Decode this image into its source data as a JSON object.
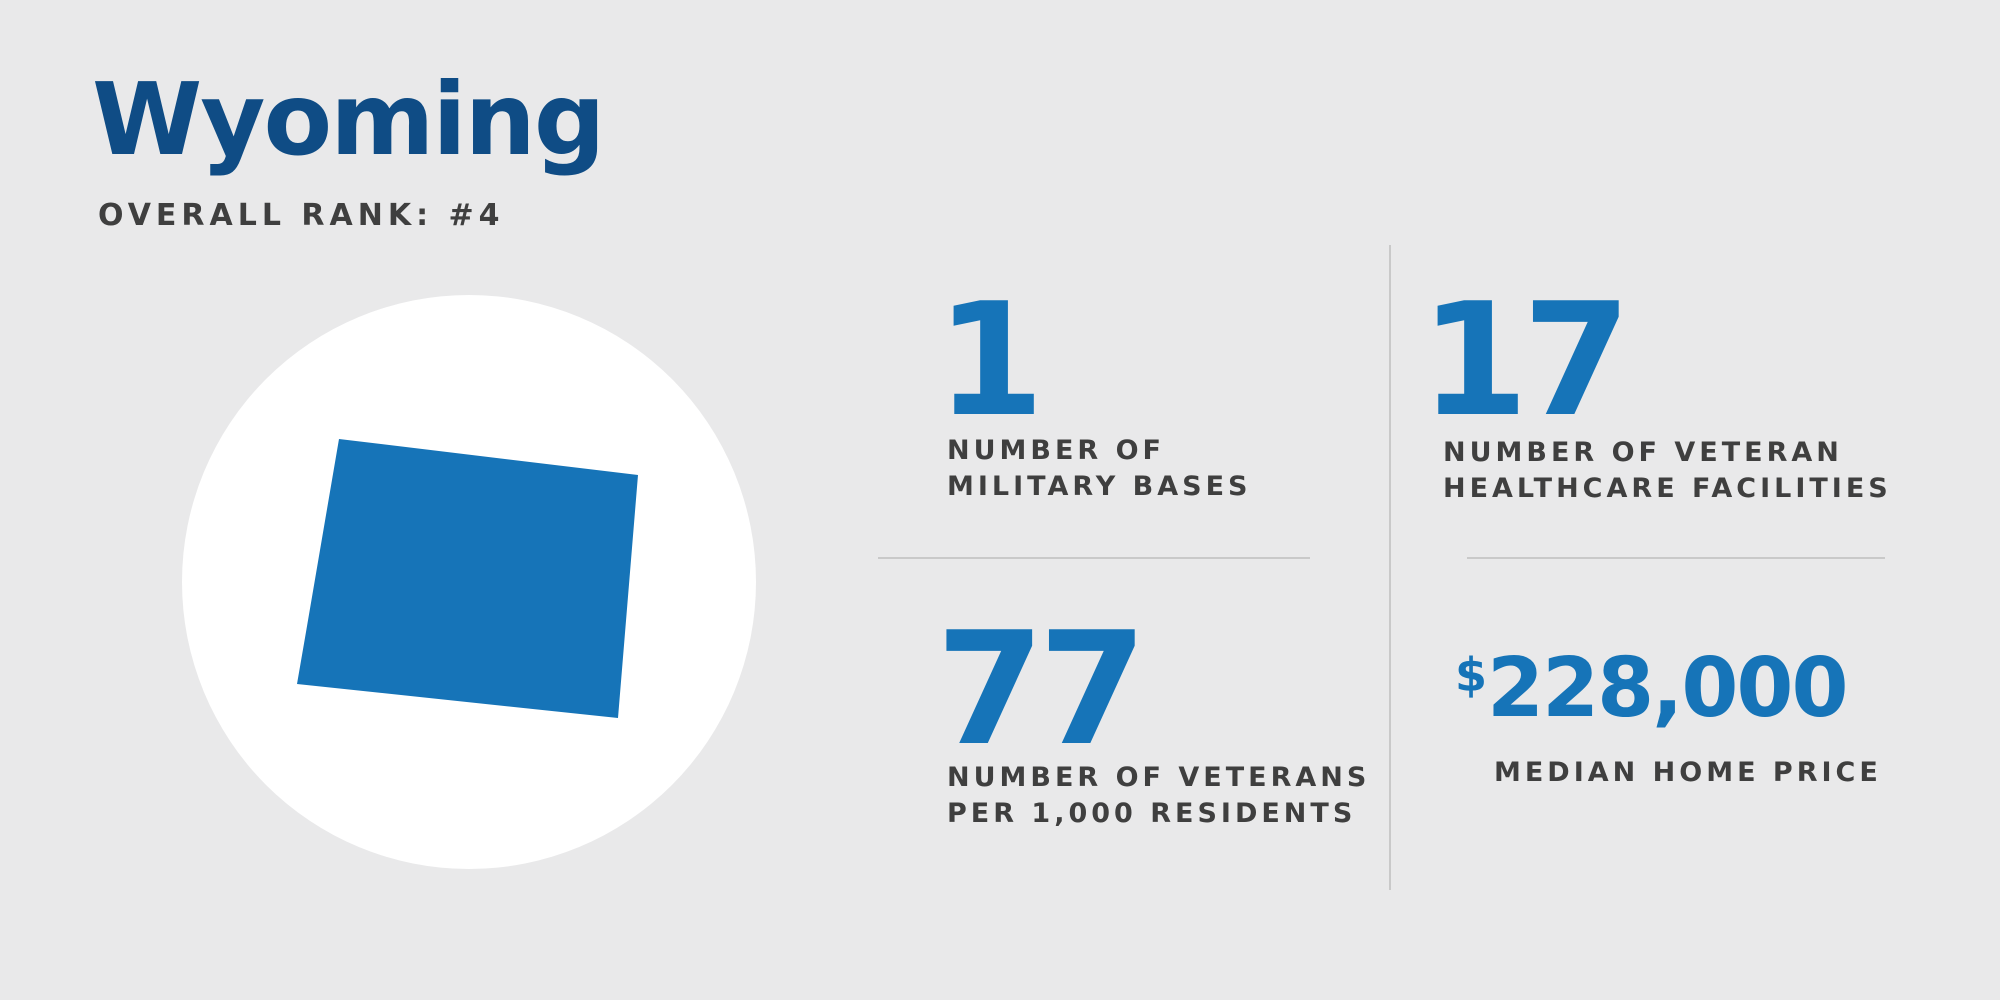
{
  "header": {
    "state_name": "Wyoming",
    "overall_rank": "OVERALL RANK: #4"
  },
  "state_icon": {
    "shape": "wyoming-state-outline",
    "fill_color": "#1674b8",
    "background_color": "#ffffff"
  },
  "stats": {
    "military_bases": {
      "value": "1",
      "label_lines": [
        "NUMBER OF",
        "MILITARY BASES"
      ]
    },
    "healthcare_facilities": {
      "value": "17",
      "label_lines": [
        "NUMBER OF VETERAN",
        "HEALTHCARE FACILITIES"
      ]
    },
    "veterans_per_1000": {
      "value": "77",
      "label_lines": [
        "NUMBER OF VETERANS",
        "PER 1,000 RESIDENTS"
      ]
    },
    "median_home_price": {
      "currency_symbol": "$",
      "value": "228,000",
      "label": "MEDIAN HOME PRICE"
    }
  },
  "colors": {
    "background": "#e9e9ea",
    "title": "#0f4c85",
    "accent": "#1674b8",
    "label_text": "#3f3f3f",
    "divider": "#c9c9c9"
  }
}
